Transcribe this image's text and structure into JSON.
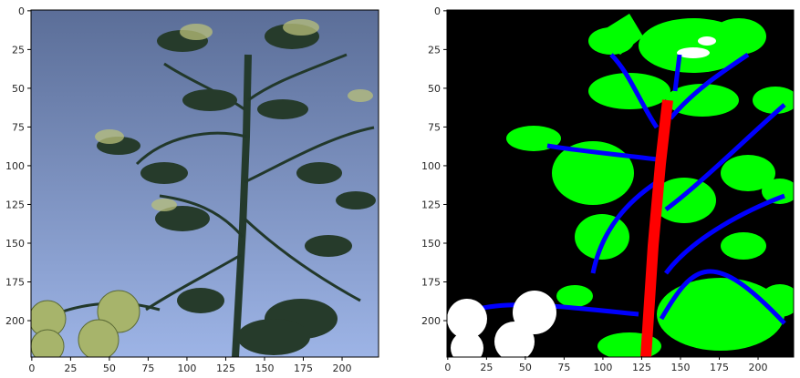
{
  "figure": {
    "panels": [
      {
        "id": "left",
        "kind": "photo",
        "x_ticks": [
          "0",
          "25",
          "50",
          "75",
          "100",
          "125",
          "150",
          "175",
          "200"
        ],
        "y_ticks": [
          "0",
          "25",
          "50",
          "75",
          "100",
          "125",
          "150",
          "175",
          "200"
        ],
        "colors": {
          "sky_top": "#5b6e98",
          "sky_bottom": "#9db4e6",
          "plant": "#1f3326",
          "leaf_light": "#b9c07a",
          "fruit": "#a7b46b"
        }
      },
      {
        "id": "right",
        "kind": "segmentation",
        "x_ticks": [
          "0",
          "25",
          "50",
          "75",
          "100",
          "125",
          "150",
          "175",
          "200"
        ],
        "y_ticks": [
          "0",
          "25",
          "50",
          "75",
          "100",
          "125",
          "150",
          "175",
          "200"
        ],
        "colors": {
          "background": "#000000",
          "leaf": "#00ff00",
          "branch": "#0000ff",
          "stem": "#ff0000",
          "fruit": "#ffffff"
        }
      }
    ]
  }
}
